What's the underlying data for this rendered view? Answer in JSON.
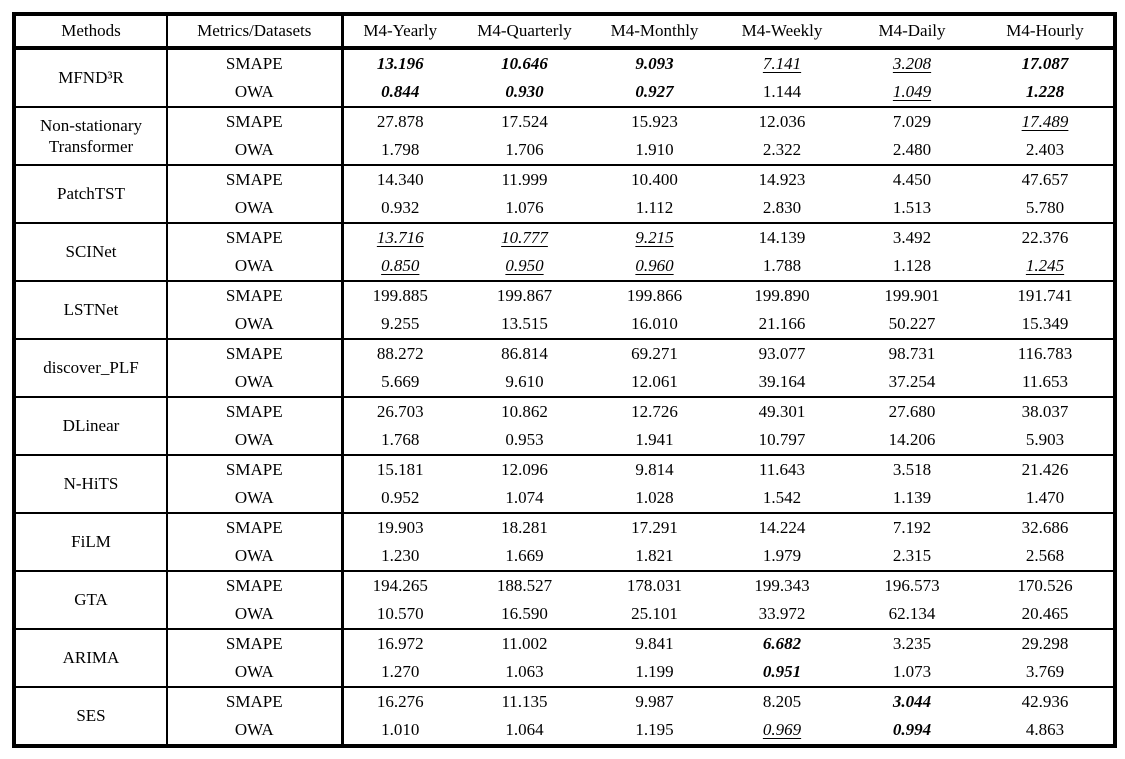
{
  "table": {
    "headers": [
      "Methods",
      "Metrics/Datasets",
      "M4-Yearly",
      "M4-Quarterly",
      "M4-Monthly",
      "M4-Weekly",
      "M4-Daily",
      "M4-Hourly"
    ],
    "style_legend": {
      "bi": "bold-italic (best)",
      "iu": "italic-underline (second best)",
      "n": "normal"
    },
    "groups": [
      {
        "method": "MFND³R",
        "rows": [
          {
            "metric": "SMAPE",
            "values": [
              {
                "v": "13.196",
                "s": "bi"
              },
              {
                "v": "10.646",
                "s": "bi"
              },
              {
                "v": "9.093",
                "s": "bi"
              },
              {
                "v": "7.141",
                "s": "iu"
              },
              {
                "v": "3.208",
                "s": "iu"
              },
              {
                "v": "17.087",
                "s": "bi"
              }
            ]
          },
          {
            "metric": "OWA",
            "values": [
              {
                "v": "0.844",
                "s": "bi"
              },
              {
                "v": "0.930",
                "s": "bi"
              },
              {
                "v": "0.927",
                "s": "bi"
              },
              {
                "v": "1.144",
                "s": "n"
              },
              {
                "v": "1.049",
                "s": "iu"
              },
              {
                "v": "1.228",
                "s": "bi"
              }
            ]
          }
        ]
      },
      {
        "method": "Non-stationary Transformer",
        "rows": [
          {
            "metric": "SMAPE",
            "values": [
              {
                "v": "27.878",
                "s": "n"
              },
              {
                "v": "17.524",
                "s": "n"
              },
              {
                "v": "15.923",
                "s": "n"
              },
              {
                "v": "12.036",
                "s": "n"
              },
              {
                "v": "7.029",
                "s": "n"
              },
              {
                "v": "17.489",
                "s": "iu"
              }
            ]
          },
          {
            "metric": "OWA",
            "values": [
              {
                "v": "1.798",
                "s": "n"
              },
              {
                "v": "1.706",
                "s": "n"
              },
              {
                "v": "1.910",
                "s": "n"
              },
              {
                "v": "2.322",
                "s": "n"
              },
              {
                "v": "2.480",
                "s": "n"
              },
              {
                "v": "2.403",
                "s": "n"
              }
            ]
          }
        ]
      },
      {
        "method": "PatchTST",
        "rows": [
          {
            "metric": "SMAPE",
            "values": [
              {
                "v": "14.340",
                "s": "n"
              },
              {
                "v": "11.999",
                "s": "n"
              },
              {
                "v": "10.400",
                "s": "n"
              },
              {
                "v": "14.923",
                "s": "n"
              },
              {
                "v": "4.450",
                "s": "n"
              },
              {
                "v": "47.657",
                "s": "n"
              }
            ]
          },
          {
            "metric": "OWA",
            "values": [
              {
                "v": "0.932",
                "s": "n"
              },
              {
                "v": "1.076",
                "s": "n"
              },
              {
                "v": "1.112",
                "s": "n"
              },
              {
                "v": "2.830",
                "s": "n"
              },
              {
                "v": "1.513",
                "s": "n"
              },
              {
                "v": "5.780",
                "s": "n"
              }
            ]
          }
        ]
      },
      {
        "method": "SCINet",
        "rows": [
          {
            "metric": "SMAPE",
            "values": [
              {
                "v": "13.716",
                "s": "iu"
              },
              {
                "v": "10.777",
                "s": "iu"
              },
              {
                "v": "9.215",
                "s": "iu"
              },
              {
                "v": "14.139",
                "s": "n"
              },
              {
                "v": "3.492",
                "s": "n"
              },
              {
                "v": "22.376",
                "s": "n"
              }
            ]
          },
          {
            "metric": "OWA",
            "values": [
              {
                "v": "0.850",
                "s": "iu"
              },
              {
                "v": "0.950",
                "s": "iu"
              },
              {
                "v": "0.960",
                "s": "iu"
              },
              {
                "v": "1.788",
                "s": "n"
              },
              {
                "v": "1.128",
                "s": "n"
              },
              {
                "v": "1.245",
                "s": "iu"
              }
            ]
          }
        ]
      },
      {
        "method": "LSTNet",
        "rows": [
          {
            "metric": "SMAPE",
            "values": [
              {
                "v": "199.885",
                "s": "n"
              },
              {
                "v": "199.867",
                "s": "n"
              },
              {
                "v": "199.866",
                "s": "n"
              },
              {
                "v": "199.890",
                "s": "n"
              },
              {
                "v": "199.901",
                "s": "n"
              },
              {
                "v": "191.741",
                "s": "n"
              }
            ]
          },
          {
            "metric": "OWA",
            "values": [
              {
                "v": "9.255",
                "s": "n"
              },
              {
                "v": "13.515",
                "s": "n"
              },
              {
                "v": "16.010",
                "s": "n"
              },
              {
                "v": "21.166",
                "s": "n"
              },
              {
                "v": "50.227",
                "s": "n"
              },
              {
                "v": "15.349",
                "s": "n"
              }
            ]
          }
        ]
      },
      {
        "method": "discover_PLF",
        "rows": [
          {
            "metric": "SMAPE",
            "values": [
              {
                "v": "88.272",
                "s": "n"
              },
              {
                "v": "86.814",
                "s": "n"
              },
              {
                "v": "69.271",
                "s": "n"
              },
              {
                "v": "93.077",
                "s": "n"
              },
              {
                "v": "98.731",
                "s": "n"
              },
              {
                "v": "116.783",
                "s": "n"
              }
            ]
          },
          {
            "metric": "OWA",
            "values": [
              {
                "v": "5.669",
                "s": "n"
              },
              {
                "v": "9.610",
                "s": "n"
              },
              {
                "v": "12.061",
                "s": "n"
              },
              {
                "v": "39.164",
                "s": "n"
              },
              {
                "v": "37.254",
                "s": "n"
              },
              {
                "v": "11.653",
                "s": "n"
              }
            ]
          }
        ]
      },
      {
        "method": "DLinear",
        "rows": [
          {
            "metric": "SMAPE",
            "values": [
              {
                "v": "26.703",
                "s": "n"
              },
              {
                "v": "10.862",
                "s": "n"
              },
              {
                "v": "12.726",
                "s": "n"
              },
              {
                "v": "49.301",
                "s": "n"
              },
              {
                "v": "27.680",
                "s": "n"
              },
              {
                "v": "38.037",
                "s": "n"
              }
            ]
          },
          {
            "metric": "OWA",
            "values": [
              {
                "v": "1.768",
                "s": "n"
              },
              {
                "v": "0.953",
                "s": "n"
              },
              {
                "v": "1.941",
                "s": "n"
              },
              {
                "v": "10.797",
                "s": "n"
              },
              {
                "v": "14.206",
                "s": "n"
              },
              {
                "v": "5.903",
                "s": "n"
              }
            ]
          }
        ]
      },
      {
        "method": "N-HiTS",
        "rows": [
          {
            "metric": "SMAPE",
            "values": [
              {
                "v": "15.181",
                "s": "n"
              },
              {
                "v": "12.096",
                "s": "n"
              },
              {
                "v": "9.814",
                "s": "n"
              },
              {
                "v": "11.643",
                "s": "n"
              },
              {
                "v": "3.518",
                "s": "n"
              },
              {
                "v": "21.426",
                "s": "n"
              }
            ]
          },
          {
            "metric": "OWA",
            "values": [
              {
                "v": "0.952",
                "s": "n"
              },
              {
                "v": "1.074",
                "s": "n"
              },
              {
                "v": "1.028",
                "s": "n"
              },
              {
                "v": "1.542",
                "s": "n"
              },
              {
                "v": "1.139",
                "s": "n"
              },
              {
                "v": "1.470",
                "s": "n"
              }
            ]
          }
        ]
      },
      {
        "method": "FiLM",
        "rows": [
          {
            "metric": "SMAPE",
            "values": [
              {
                "v": "19.903",
                "s": "n"
              },
              {
                "v": "18.281",
                "s": "n"
              },
              {
                "v": "17.291",
                "s": "n"
              },
              {
                "v": "14.224",
                "s": "n"
              },
              {
                "v": "7.192",
                "s": "n"
              },
              {
                "v": "32.686",
                "s": "n"
              }
            ]
          },
          {
            "metric": "OWA",
            "values": [
              {
                "v": "1.230",
                "s": "n"
              },
              {
                "v": "1.669",
                "s": "n"
              },
              {
                "v": "1.821",
                "s": "n"
              },
              {
                "v": "1.979",
                "s": "n"
              },
              {
                "v": "2.315",
                "s": "n"
              },
              {
                "v": "2.568",
                "s": "n"
              }
            ]
          }
        ]
      },
      {
        "method": "GTA",
        "rows": [
          {
            "metric": "SMAPE",
            "values": [
              {
                "v": "194.265",
                "s": "n"
              },
              {
                "v": "188.527",
                "s": "n"
              },
              {
                "v": "178.031",
                "s": "n"
              },
              {
                "v": "199.343",
                "s": "n"
              },
              {
                "v": "196.573",
                "s": "n"
              },
              {
                "v": "170.526",
                "s": "n"
              }
            ]
          },
          {
            "metric": "OWA",
            "values": [
              {
                "v": "10.570",
                "s": "n"
              },
              {
                "v": "16.590",
                "s": "n"
              },
              {
                "v": "25.101",
                "s": "n"
              },
              {
                "v": "33.972",
                "s": "n"
              },
              {
                "v": "62.134",
                "s": "n"
              },
              {
                "v": "20.465",
                "s": "n"
              }
            ]
          }
        ]
      },
      {
        "method": "ARIMA",
        "rows": [
          {
            "metric": "SMAPE",
            "values": [
              {
                "v": "16.972",
                "s": "n"
              },
              {
                "v": "11.002",
                "s": "n"
              },
              {
                "v": "9.841",
                "s": "n"
              },
              {
                "v": "6.682",
                "s": "bi"
              },
              {
                "v": "3.235",
                "s": "n"
              },
              {
                "v": "29.298",
                "s": "n"
              }
            ]
          },
          {
            "metric": "OWA",
            "values": [
              {
                "v": "1.270",
                "s": "n"
              },
              {
                "v": "1.063",
                "s": "n"
              },
              {
                "v": "1.199",
                "s": "n"
              },
              {
                "v": "0.951",
                "s": "bi"
              },
              {
                "v": "1.073",
                "s": "n"
              },
              {
                "v": "3.769",
                "s": "n"
              }
            ]
          }
        ]
      },
      {
        "method": "SES",
        "rows": [
          {
            "metric": "SMAPE",
            "values": [
              {
                "v": "16.276",
                "s": "n"
              },
              {
                "v": "11.135",
                "s": "n"
              },
              {
                "v": "9.987",
                "s": "n"
              },
              {
                "v": "8.205",
                "s": "n"
              },
              {
                "v": "3.044",
                "s": "bi"
              },
              {
                "v": "42.936",
                "s": "n"
              }
            ]
          },
          {
            "metric": "OWA",
            "values": [
              {
                "v": "1.010",
                "s": "n"
              },
              {
                "v": "1.064",
                "s": "n"
              },
              {
                "v": "1.195",
                "s": "n"
              },
              {
                "v": "0.969",
                "s": "iu"
              },
              {
                "v": "0.994",
                "s": "bi"
              },
              {
                "v": "4.863",
                "s": "n"
              }
            ]
          }
        ]
      }
    ]
  }
}
